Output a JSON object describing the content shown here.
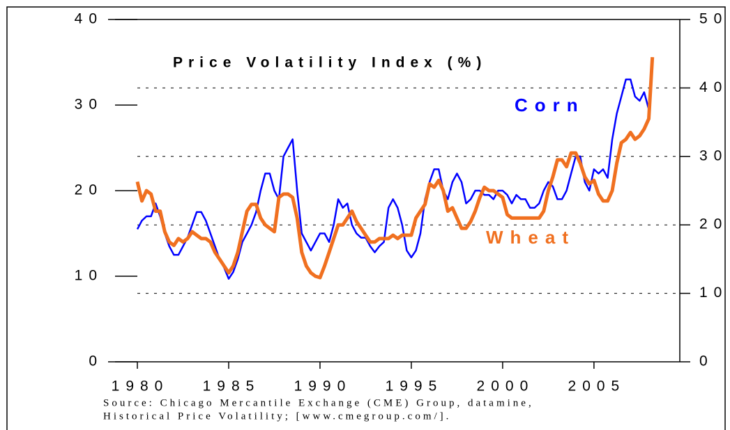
{
  "chart_data": {
    "type": "line",
    "title": "Price Volatility Index (%)",
    "source": [
      "Source: Chicago Mercantile Exchange (CME) Group, datamine,",
      "Historical Price Volatility; [www.cmegroup.com/]."
    ],
    "x": [
      1980,
      1980.25,
      1980.5,
      1980.75,
      1981,
      1981.25,
      1981.5,
      1981.75,
      1982,
      1982.25,
      1982.5,
      1982.75,
      1983,
      1983.25,
      1983.5,
      1983.75,
      1984,
      1984.25,
      1984.5,
      1984.75,
      1985,
      1985.25,
      1985.5,
      1985.75,
      1986,
      1986.25,
      1986.5,
      1986.75,
      1987,
      1987.25,
      1987.5,
      1987.75,
      1988,
      1988.25,
      1988.5,
      1988.75,
      1989,
      1989.25,
      1989.5,
      1989.75,
      1990,
      1990.25,
      1990.5,
      1990.75,
      1991,
      1991.25,
      1991.5,
      1991.75,
      1992,
      1992.25,
      1992.5,
      1992.75,
      1993,
      1993.25,
      1993.5,
      1993.75,
      1994,
      1994.25,
      1994.5,
      1994.75,
      1995,
      1995.25,
      1995.5,
      1995.75,
      1996,
      1996.25,
      1996.5,
      1996.75,
      1997,
      1997.25,
      1997.5,
      1997.75,
      1998,
      1998.25,
      1998.5,
      1998.75,
      1999,
      1999.25,
      1999.5,
      1999.75,
      2000,
      2000.25,
      2000.5,
      2000.75,
      2001,
      2001.25,
      2001.5,
      2001.75,
      2002,
      2002.25,
      2002.5,
      2002.75,
      2003,
      2003.25,
      2003.5,
      2003.75,
      2004,
      2004.25,
      2004.5,
      2004.75,
      2005,
      2005.25,
      2005.5,
      2005.75,
      2006,
      2006.25,
      2006.5,
      2006.75,
      2007,
      2007.25,
      2007.5,
      2007.75,
      2008,
      2008.2
    ],
    "series": [
      {
        "name": "Corn",
        "color": "#0000ff",
        "values": [
          15.5,
          16.5,
          17,
          17,
          18.5,
          17,
          15,
          13.5,
          12.5,
          12.5,
          13.5,
          14.5,
          16,
          17.5,
          17.5,
          16.5,
          15,
          13.5,
          12,
          11,
          9.7,
          10.5,
          12,
          14,
          15,
          16,
          17.5,
          20,
          22,
          22,
          20,
          19,
          24,
          25,
          26,
          20,
          15,
          14,
          13,
          14,
          15,
          15,
          14,
          16,
          19,
          18,
          18.5,
          16,
          15,
          14.5,
          14.5,
          13.5,
          12.8,
          13.5,
          14,
          18,
          19,
          18,
          16,
          13,
          12.2,
          13,
          15,
          19,
          21,
          22.5,
          22.5,
          20,
          19,
          21,
          22,
          21,
          18.5,
          19,
          20,
          20,
          19.5,
          19.5,
          19,
          20,
          20,
          19.5,
          18.5,
          19.5,
          19,
          19,
          18,
          18,
          18.5,
          20,
          21,
          20.5,
          19,
          19,
          20,
          22,
          24,
          24,
          21,
          20,
          22.5,
          22,
          22.5,
          21.5,
          26,
          29,
          31,
          33,
          33,
          31,
          30.5,
          31.5,
          29.5,
          null
        ]
      },
      {
        "name": "Wheat",
        "color": "#f07020",
        "axis": "y2",
        "values": [
          26.3,
          23.5,
          25,
          24.5,
          22,
          22,
          19,
          17.5,
          17,
          18,
          17.5,
          18,
          19,
          18.5,
          18,
          18,
          17.5,
          16,
          15,
          14,
          13,
          14,
          16,
          19,
          22,
          23,
          23,
          21,
          20,
          19.5,
          19,
          24,
          24.5,
          24.5,
          24,
          21,
          16,
          14,
          13,
          12.5,
          12.3,
          14,
          16,
          18,
          20,
          20,
          21,
          22,
          20.5,
          19.5,
          18.5,
          17.5,
          17.5,
          18,
          18,
          18,
          18.5,
          18,
          18.5,
          18.5,
          18.5,
          21,
          22,
          23,
          26,
          25.5,
          26.5,
          25,
          22,
          22.5,
          21,
          19.5,
          19.5,
          20.5,
          22,
          24,
          25.5,
          25,
          25,
          24.5,
          24,
          21.5,
          21,
          21,
          21,
          21,
          21,
          21,
          21,
          22,
          25,
          27,
          29.5,
          29.5,
          28.5,
          30.5,
          30.5,
          29,
          27,
          26,
          26.5,
          24.5,
          23.5,
          23.5,
          25,
          29,
          32,
          32.5,
          33.5,
          32.5,
          33,
          34,
          35.5,
          44.5
        ]
      }
    ],
    "xlim": [
      1980,
      2009.7
    ],
    "xticks": [
      1980,
      1985,
      1990,
      1995,
      2000,
      2005
    ],
    "ylim": [
      0,
      40
    ],
    "yticks": [
      0,
      10,
      20,
      30,
      40
    ],
    "y2lim": [
      0,
      50
    ],
    "y2ticks": [
      0,
      10,
      20,
      30,
      40,
      50
    ],
    "grid": true
  }
}
